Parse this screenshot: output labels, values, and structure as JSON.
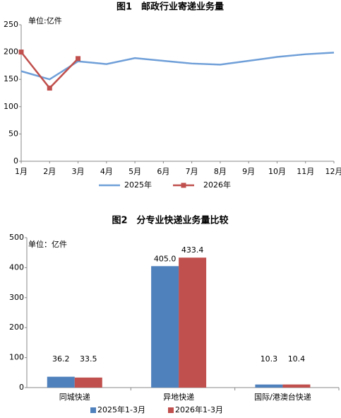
{
  "chart_data": [
    {
      "type": "line",
      "title": "图1　邮政行业寄递业务量",
      "unit": "单位:亿件",
      "categories": [
        "1月",
        "2月",
        "3月",
        "4月",
        "5月",
        "6月",
        "7月",
        "8月",
        "9月",
        "10月",
        "11月",
        "12月"
      ],
      "series": [
        {
          "name": "2025年",
          "color": "#6f9fd8",
          "values": [
            165,
            150,
            183,
            178,
            189,
            184,
            179,
            177,
            184,
            191,
            196,
            199
          ]
        },
        {
          "name": "2026年",
          "color": "#c0504d",
          "marker": "square",
          "values": [
            200,
            134,
            188,
            null,
            null,
            null,
            null,
            null,
            null,
            null,
            null,
            null
          ]
        }
      ],
      "ylim": [
        0,
        250
      ],
      "yticks": [
        0,
        50,
        100,
        150,
        200,
        250
      ],
      "grid": false
    },
    {
      "type": "bar",
      "title": "图2　分专业快递业务量比较",
      "unit": "单位：亿件",
      "categories": [
        "同城快递",
        "异地快递",
        "国际/港澳台快递"
      ],
      "series": [
        {
          "name": "2025年1-3月",
          "color": "#4f81bd",
          "values": [
            36.2,
            405.0,
            10.3
          ],
          "value_labels": [
            "36.2",
            "405.0",
            "10.3"
          ]
        },
        {
          "name": "2026年1-3月",
          "color": "#c0504d",
          "values": [
            33.5,
            433.4,
            10.4
          ],
          "value_labels": [
            "33.5",
            "433.4",
            "10.4"
          ]
        }
      ],
      "ylim": [
        0,
        500
      ],
      "yticks": [
        0,
        100,
        200,
        300,
        400,
        500
      ],
      "grid": false
    }
  ]
}
